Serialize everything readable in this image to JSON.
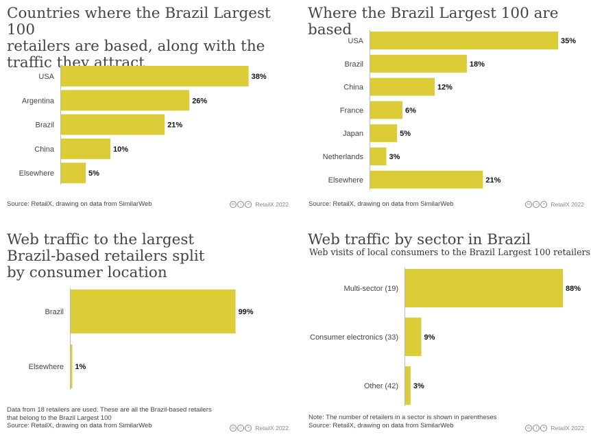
{
  "chart_data": [
    {
      "type": "bar",
      "orientation": "horizontal",
      "title": "Countries where the Brazil Largest 100 retailers are based, along with the traffic they attract",
      "title_lines": [
        "Countries where the Brazil Largest 100",
        "retailers are based, along with the",
        "traffic they attract"
      ],
      "categories": [
        "USA",
        "Argentina",
        "Brazil",
        "China",
        "Elsewhere"
      ],
      "values": [
        38,
        26,
        21,
        10,
        5
      ],
      "value_labels": [
        "38%",
        "26%",
        "21%",
        "10%",
        "5%"
      ],
      "xlim": [
        0,
        40
      ],
      "source": "Source: RetailX, drawing on data from SimilarWeb",
      "brand": "RetailX 2022"
    },
    {
      "type": "bar",
      "orientation": "horizontal",
      "title": "Where the Brazil Largest 100 are based",
      "title_lines": [
        "Where the Brazil Largest 100 are based"
      ],
      "categories": [
        "USA",
        "Brazil",
        "China",
        "France",
        "Japan",
        "Netherlands",
        "Elsewhere"
      ],
      "values": [
        35,
        18,
        12,
        6,
        5,
        3,
        21
      ],
      "value_labels": [
        "35%",
        "18%",
        "12%",
        "6%",
        "5%",
        "3%",
        "21%"
      ],
      "xlim": [
        0,
        35
      ],
      "source": "Source: RetailX, drawing on data from SimilarWeb",
      "brand": "RetailX 2022"
    },
    {
      "type": "bar",
      "orientation": "horizontal",
      "title": "Web traffic to the largest Brazil-based retailers split by consumer location",
      "title_lines": [
        "Web traffic to the largest",
        "Brazil-based retailers split",
        "by consumer location"
      ],
      "categories": [
        "Brazil",
        "Elsewhere"
      ],
      "values": [
        99,
        1
      ],
      "value_labels": [
        "99%",
        "1%"
      ],
      "xlim": [
        0,
        100
      ],
      "note_lines": [
        "Data from 18 retailers are used. These are all the Brazil-based retailers",
        "that belong to the Brazil Largest 100"
      ],
      "source": "Source: RetailX, drawing on data from SimilarWeb",
      "brand": "RetailX 2022"
    },
    {
      "type": "bar",
      "orientation": "horizontal",
      "title": "Web traffic by sector in Brazil",
      "title_lines": [
        "Web traffic by sector in Brazil"
      ],
      "subtitle": "Web visits of local consumers to the Brazil Largest 100 retailers",
      "categories": [
        "Multi-sector (19)",
        "Consumer electronics (33)",
        "Other (42)"
      ],
      "values": [
        88,
        9,
        3
      ],
      "value_labels": [
        "88%",
        "9%",
        "3%"
      ],
      "xlim": [
        0,
        88
      ],
      "note_lines": [
        "Note: The number of retailers in a sector is shown in parentheses"
      ],
      "source": "Source: RetailX, drawing on data from SimilarWeb",
      "brand": "RetailX 2022"
    }
  ],
  "colors": {
    "bar": "#dccc37",
    "axis": "#bbbbbb"
  },
  "icons": [
    "cc-icon",
    "by-icon",
    "nd-icon"
  ]
}
